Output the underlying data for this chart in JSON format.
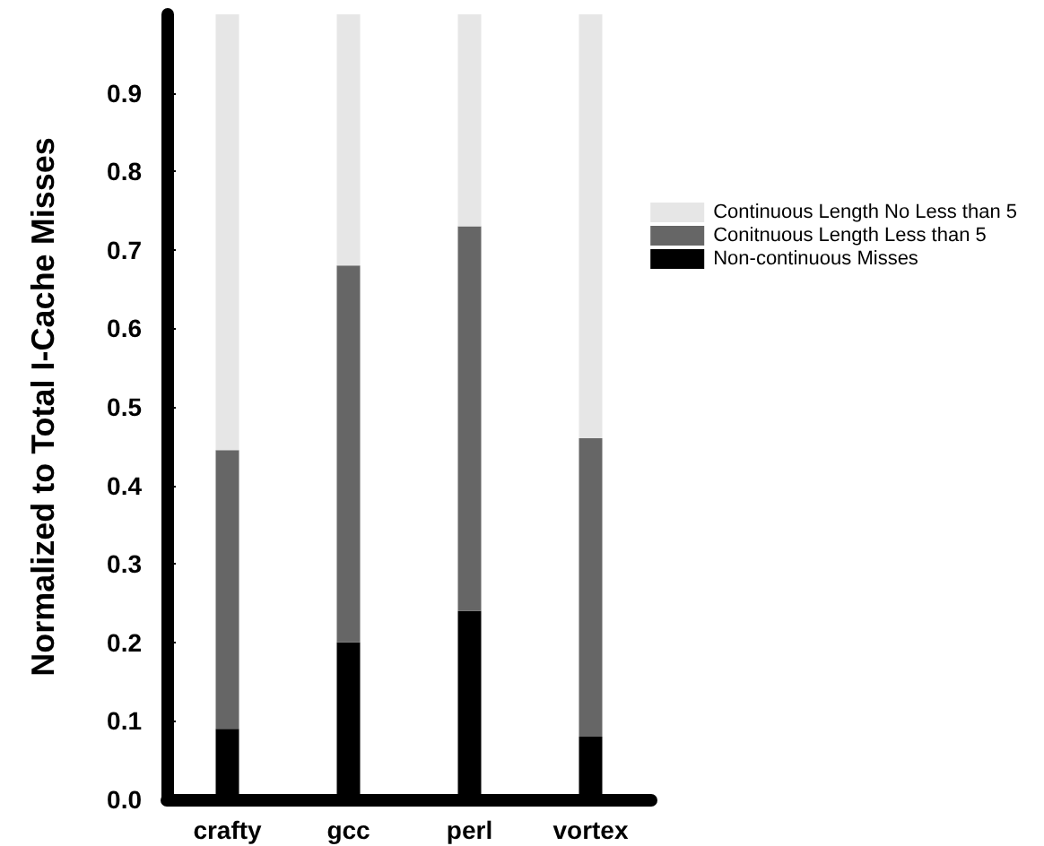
{
  "chart_data": {
    "type": "bar",
    "stacked": true,
    "ylabel": "Normalized to Total I-Cache Misses",
    "categories": [
      "crafty",
      "gcc",
      "perl",
      "vortex"
    ],
    "series": [
      {
        "name": "Non-continuous Misses",
        "color": "#000000",
        "values": [
          0.09,
          0.2,
          0.24,
          0.08
        ]
      },
      {
        "name": "Conitnuous Length Less than 5",
        "color": "#666666",
        "values": [
          0.355,
          0.48,
          0.49,
          0.38
        ]
      },
      {
        "name": "Continuous Length No Less than 5",
        "color": "#e6e6e6",
        "values": [
          0.555,
          0.32,
          0.27,
          0.54
        ]
      }
    ],
    "ylim": [
      0,
      1
    ],
    "yticks": [
      {
        "value": 0,
        "label": "0.0"
      },
      {
        "value": 0.1,
        "label": "0.1"
      },
      {
        "value": 0.2,
        "label": "0.2"
      },
      {
        "value": 0.3,
        "label": "0.3"
      },
      {
        "value": 0.4,
        "label": "0.4"
      },
      {
        "value": 0.5,
        "label": "0.5"
      },
      {
        "value": 0.6,
        "label": "0.6"
      },
      {
        "value": 0.7,
        "label": "0.7"
      },
      {
        "value": 0.8,
        "label": "0.8"
      },
      {
        "value": 0.9,
        "label": "0.9"
      }
    ],
    "grid": false,
    "legend": "right"
  }
}
